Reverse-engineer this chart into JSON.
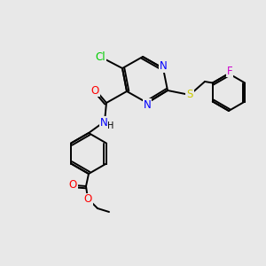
{
  "bg_color": "#e8e8e8",
  "bond_color": "#000000",
  "atom_colors": {
    "N": "#0000ff",
    "O": "#ff0000",
    "S": "#cccc00",
    "Cl": "#00cc00",
    "F": "#cc00cc",
    "C": "#000000",
    "H": "#000000"
  },
  "figsize": [
    3.0,
    3.0
  ],
  "dpi": 100,
  "lw": 1.4,
  "fontsize": 8.5
}
